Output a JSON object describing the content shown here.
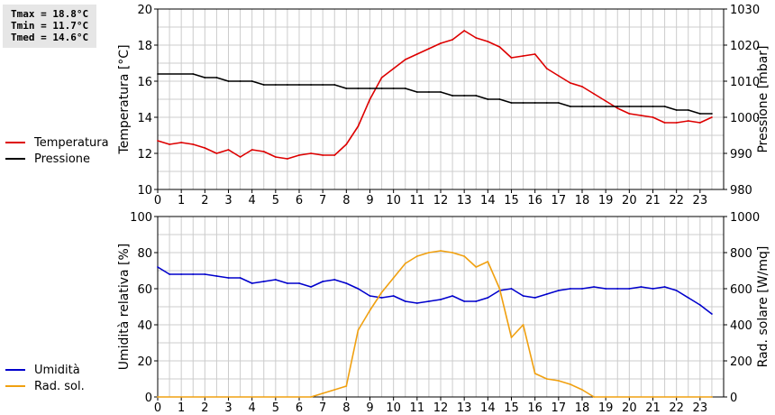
{
  "stats": {
    "tmax": "Tmax = 18.8°C",
    "tmin": "Tmin = 11.7°C",
    "tmed": "Tmed = 14.6°C"
  },
  "colors": {
    "temperature": "#dd0000",
    "pressure": "#000000",
    "humidity": "#0000cc",
    "radiation": "#f0a010",
    "grid": "#cccccc"
  },
  "chart_data": [
    {
      "type": "line",
      "xlim": [
        0,
        24
      ],
      "x_ticks": [
        "0",
        "1",
        "2",
        "3",
        "4",
        "5",
        "6",
        "7",
        "8",
        "9",
        "10",
        "11",
        "12",
        "13",
        "14",
        "15",
        "16",
        "17",
        "18",
        "19",
        "20",
        "21",
        "22",
        "23"
      ],
      "ylabel_left": "Temperatura [°C]",
      "ylim_left": [
        10,
        20
      ],
      "yticks_left": [
        "10",
        "12",
        "14",
        "16",
        "18",
        "20"
      ],
      "ylabel_right": "Pressione [mbar]",
      "ylim_right": [
        980,
        1030
      ],
      "yticks_right": [
        "980",
        "990",
        "1000",
        "1010",
        "1020",
        "1030"
      ],
      "grid": true,
      "legend": [
        {
          "label": "Temperatura",
          "color": "#dd0000"
        },
        {
          "label": "Pressione",
          "color": "#000000"
        }
      ],
      "series": [
        {
          "name": "Temperatura",
          "axis": "left",
          "color": "#dd0000",
          "x": [
            0,
            0.5,
            1,
            1.5,
            2,
            2.5,
            3,
            3.5,
            4,
            4.5,
            5,
            5.5,
            6,
            6.5,
            7,
            7.5,
            8,
            8.5,
            9,
            9.5,
            10,
            10.5,
            11,
            11.5,
            12,
            12.5,
            13,
            13.5,
            14,
            14.5,
            15,
            15.5,
            16,
            16.5,
            17,
            17.5,
            18,
            18.5,
            19,
            19.5,
            20,
            20.5,
            21,
            21.5,
            22,
            22.5,
            23,
            23.5
          ],
          "y": [
            12.7,
            12.5,
            12.6,
            12.5,
            12.3,
            12.0,
            12.2,
            11.8,
            12.2,
            12.1,
            11.8,
            11.7,
            11.9,
            12.0,
            11.9,
            11.9,
            12.5,
            13.5,
            15.0,
            16.2,
            16.7,
            17.2,
            17.5,
            17.8,
            18.1,
            18.3,
            18.8,
            18.4,
            18.2,
            17.9,
            17.3,
            17.4,
            17.5,
            16.7,
            16.3,
            15.9,
            15.7,
            15.3,
            14.9,
            14.5,
            14.2,
            14.1,
            14.0,
            13.7,
            13.7,
            13.8,
            13.7,
            14.0
          ]
        },
        {
          "name": "Pressione",
          "axis": "right",
          "color": "#000000",
          "x": [
            0,
            1.5,
            2,
            2.5,
            3,
            3.5,
            4,
            4.5,
            5,
            5.5,
            6,
            6.5,
            7,
            7.5,
            8,
            8.5,
            9,
            9.5,
            10,
            10.5,
            11,
            11.5,
            12,
            12.5,
            13,
            13.5,
            14,
            14.5,
            15,
            15.5,
            16,
            16.5,
            17,
            17.5,
            18,
            18.5,
            19,
            19.5,
            20,
            20.5,
            21,
            21.5,
            22,
            22.5,
            23,
            23.5
          ],
          "y": [
            1012,
            1012,
            1011,
            1011,
            1010,
            1010,
            1010,
            1009,
            1009,
            1009,
            1009,
            1009,
            1009,
            1009,
            1008,
            1008,
            1008,
            1008,
            1008,
            1008,
            1007,
            1007,
            1007,
            1006,
            1006,
            1006,
            1005,
            1005,
            1004,
            1004,
            1004,
            1004,
            1004,
            1003,
            1003,
            1003,
            1003,
            1003,
            1003,
            1003,
            1003,
            1003,
            1002,
            1002,
            1001,
            1001
          ]
        }
      ]
    },
    {
      "type": "line",
      "xlim": [
        0,
        24
      ],
      "x_ticks": [
        "0",
        "1",
        "2",
        "3",
        "4",
        "5",
        "6",
        "7",
        "8",
        "9",
        "10",
        "11",
        "12",
        "13",
        "14",
        "15",
        "16",
        "17",
        "18",
        "19",
        "20",
        "21",
        "22",
        "23"
      ],
      "ylabel_left": "Umidità relativa [%]",
      "ylim_left": [
        0,
        100
      ],
      "yticks_left": [
        "0",
        "20",
        "40",
        "60",
        "80",
        "100"
      ],
      "ylabel_right": "Rad. solare [W/mq]",
      "ylim_right": [
        0,
        1000
      ],
      "yticks_right": [
        "0",
        "200",
        "400",
        "600",
        "800",
        "1000"
      ],
      "grid": true,
      "legend": [
        {
          "label": "Umidità",
          "color": "#0000cc"
        },
        {
          "label": "Rad. sol.",
          "color": "#f0a010"
        }
      ],
      "series": [
        {
          "name": "Umidità",
          "axis": "left",
          "color": "#0000cc",
          "x": [
            0,
            0.5,
            1,
            1.5,
            2,
            2.5,
            3,
            3.5,
            4,
            4.5,
            5,
            5.5,
            6,
            6.5,
            7,
            7.5,
            8,
            8.5,
            9,
            9.5,
            10,
            10.5,
            11,
            11.5,
            12,
            12.5,
            13,
            13.5,
            14,
            14.5,
            15,
            15.5,
            16,
            16.5,
            17,
            17.5,
            18,
            18.5,
            19,
            19.5,
            20,
            20.5,
            21,
            21.5,
            22,
            22.5,
            23,
            23.5
          ],
          "y": [
            72,
            68,
            68,
            68,
            68,
            67,
            66,
            66,
            63,
            64,
            65,
            63,
            63,
            61,
            64,
            65,
            63,
            60,
            56,
            55,
            56,
            53,
            52,
            53,
            54,
            56,
            53,
            53,
            55,
            59,
            60,
            56,
            55,
            57,
            59,
            60,
            60,
            61,
            60,
            60,
            60,
            61,
            60,
            61,
            59,
            55,
            51,
            46
          ]
        },
        {
          "name": "Rad. sol.",
          "axis": "right",
          "color": "#f0a010",
          "x": [
            0,
            6.5,
            7,
            7.5,
            8,
            8.5,
            9,
            9.5,
            10,
            10.5,
            11,
            11.5,
            12,
            12.5,
            13,
            13.5,
            14,
            14.5,
            15,
            15.5,
            16,
            16.5,
            17,
            17.5,
            18,
            18.5,
            19,
            20,
            21,
            22,
            23,
            23.5
          ],
          "y": [
            0,
            0,
            20,
            40,
            60,
            370,
            480,
            580,
            660,
            740,
            780,
            800,
            810,
            800,
            780,
            720,
            750,
            600,
            330,
            400,
            130,
            100,
            90,
            70,
            40,
            0,
            0,
            0,
            0,
            0,
            0,
            0
          ]
        }
      ]
    }
  ]
}
